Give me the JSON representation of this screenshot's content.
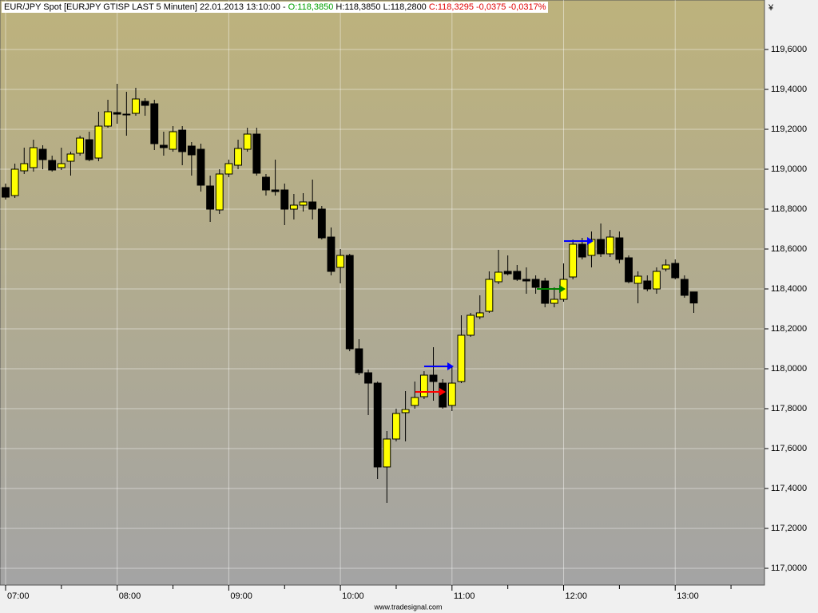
{
  "chart_data": {
    "type": "candlestick",
    "title": "EUR/JPY Spot [EURJPY GTISP LAST 5 Minuten] 22.01.2013 13:10:00 -",
    "quote": {
      "open": "O:118,3850",
      "high": "H:118,3850",
      "low": "L:118,2800",
      "close": "C:118,3295",
      "change": "-0,0375",
      "change_pct": "-0,0317%"
    },
    "y_unit": "¥",
    "source": "www.tradesignal.com",
    "up_color": "#ffff00",
    "down_color": "#000000",
    "grid": true,
    "x": [
      "07:00",
      "07:05",
      "07:10",
      "07:15",
      "07:20",
      "07:25",
      "07:30",
      "07:35",
      "07:40",
      "07:45",
      "07:50",
      "07:55",
      "08:00",
      "08:05",
      "08:10",
      "08:15",
      "08:20",
      "08:25",
      "08:30",
      "08:35",
      "08:40",
      "08:45",
      "08:50",
      "08:55",
      "09:00",
      "09:05",
      "09:10",
      "09:15",
      "09:20",
      "09:25",
      "09:30",
      "09:35",
      "09:40",
      "09:45",
      "09:50",
      "09:55",
      "10:00",
      "10:05",
      "10:10",
      "10:15",
      "10:20",
      "10:25",
      "10:30",
      "10:35",
      "10:40",
      "10:45",
      "10:50",
      "10:55",
      "11:00",
      "11:05",
      "11:10",
      "11:15",
      "11:20",
      "11:25",
      "11:30",
      "11:35",
      "11:40",
      "11:45",
      "11:50",
      "11:55",
      "12:00",
      "12:05",
      "12:10",
      "12:15",
      "12:20",
      "12:25",
      "12:30",
      "12:35",
      "12:40",
      "12:45",
      "12:50",
      "12:55",
      "13:00",
      "13:05",
      "13:10"
    ],
    "open": [
      118.908,
      118.868,
      118.992,
      119.008,
      119.1,
      119.044,
      119.008,
      119.04,
      119.08,
      119.148,
      119.056,
      119.216,
      119.284,
      119.272,
      119.28,
      119.34,
      119.328,
      119.12,
      119.1,
      119.196,
      119.116,
      119.1,
      118.916,
      118.796,
      118.976,
      119.02,
      119.1,
      119.176,
      118.96,
      118.896,
      118.896,
      118.8,
      118.82,
      118.836,
      118.8,
      118.66,
      118.508,
      118.568,
      118.1,
      117.98,
      117.928,
      117.508,
      117.648,
      117.78,
      117.816,
      117.86,
      117.968,
      117.928,
      117.816,
      117.936,
      118.168,
      118.26,
      118.288,
      118.436,
      118.488,
      118.488,
      118.448,
      118.448,
      118.44,
      118.328,
      118.348,
      118.46,
      118.624,
      118.568,
      118.648,
      118.576,
      118.656,
      118.556,
      118.428,
      118.44,
      118.4,
      118.5,
      118.528,
      118.448,
      118.385
    ],
    "high": [
      118.928,
      119.028,
      119.108,
      119.148,
      119.12,
      119.068,
      119.108,
      119.088,
      119.168,
      119.188,
      119.288,
      119.348,
      119.428,
      119.388,
      119.408,
      119.356,
      119.348,
      119.188,
      119.216,
      119.216,
      119.136,
      119.128,
      118.968,
      119.0,
      119.048,
      119.148,
      119.208,
      119.208,
      118.976,
      119.048,
      118.928,
      118.876,
      118.88,
      118.948,
      118.816,
      118.708,
      118.6,
      118.576,
      118.148,
      117.996,
      117.936,
      117.688,
      117.8,
      117.888,
      117.936,
      117.988,
      118.108,
      117.948,
      118.008,
      118.268,
      118.28,
      118.368,
      118.488,
      118.596,
      118.568,
      118.52,
      118.508,
      118.468,
      118.456,
      118.408,
      118.528,
      118.648,
      118.656,
      118.688,
      118.728,
      118.696,
      118.688,
      118.568,
      118.488,
      118.468,
      118.508,
      118.548,
      118.548,
      118.468,
      118.385
    ],
    "low": [
      118.848,
      118.856,
      118.976,
      118.988,
      119.0,
      118.988,
      118.996,
      118.968,
      119.068,
      119.04,
      119.04,
      119.208,
      119.228,
      119.168,
      119.268,
      119.268,
      119.096,
      119.068,
      119.088,
      119.02,
      118.968,
      118.888,
      118.736,
      118.776,
      118.96,
      119.0,
      119.088,
      118.968,
      118.868,
      118.868,
      118.72,
      118.748,
      118.788,
      118.748,
      118.648,
      118.468,
      118.428,
      118.088,
      117.968,
      117.768,
      117.448,
      117.328,
      117.636,
      117.636,
      117.8,
      117.848,
      117.84,
      117.8,
      117.788,
      117.928,
      118.16,
      118.248,
      118.28,
      118.424,
      118.468,
      118.44,
      118.376,
      118.376,
      118.308,
      118.308,
      118.336,
      118.448,
      118.548,
      118.508,
      118.56,
      118.56,
      118.528,
      118.428,
      118.328,
      118.388,
      118.376,
      118.488,
      118.448,
      118.356,
      118.28
    ],
    "close": [
      118.86,
      119.0,
      119.028,
      119.108,
      119.048,
      118.996,
      119.028,
      119.076,
      119.156,
      119.048,
      119.216,
      119.288,
      119.276,
      119.276,
      119.352,
      119.32,
      119.128,
      119.108,
      119.188,
      119.088,
      119.072,
      118.92,
      118.8,
      118.976,
      119.028,
      119.104,
      119.176,
      118.98,
      118.896,
      118.888,
      118.8,
      118.82,
      118.836,
      118.8,
      118.656,
      118.488,
      118.568,
      118.1,
      117.98,
      117.928,
      117.508,
      117.648,
      117.776,
      117.796,
      117.856,
      117.968,
      117.936,
      117.808,
      117.928,
      118.168,
      118.268,
      118.28,
      118.448,
      118.484,
      118.476,
      118.448,
      118.44,
      118.408,
      118.328,
      118.348,
      118.448,
      118.624,
      118.56,
      118.648,
      118.576,
      118.66,
      118.548,
      118.436,
      118.464,
      118.4,
      118.488,
      118.52,
      118.456,
      118.368,
      118.3295
    ],
    "xlim": [
      "06:57",
      "13:48"
    ],
    "xticks": [
      "07:00",
      "08:00",
      "09:00",
      "10:00",
      "11:00",
      "12:00",
      "13:00"
    ],
    "ylim": [
      116.916,
      119.848
    ],
    "yticks": [
      {
        "value": 117.0,
        "label": "117,0000"
      },
      {
        "value": 117.2,
        "label": "117,2000"
      },
      {
        "value": 117.4,
        "label": "117,4000"
      },
      {
        "value": 117.6,
        "label": "117,6000"
      },
      {
        "value": 117.8,
        "label": "117,8000"
      },
      {
        "value": 118.0,
        "label": "118,0000"
      },
      {
        "value": 118.2,
        "label": "118,2000"
      },
      {
        "value": 118.4,
        "label": "118,4000"
      },
      {
        "value": 118.6,
        "label": "118,6000"
      },
      {
        "value": 118.8,
        "label": "118,8000"
      },
      {
        "value": 119.0,
        "label": "119,0000"
      },
      {
        "value": 119.2,
        "label": "119,2000"
      },
      {
        "value": 119.4,
        "label": "119,4000"
      },
      {
        "value": 119.6,
        "label": "119,6000"
      }
    ]
  }
}
